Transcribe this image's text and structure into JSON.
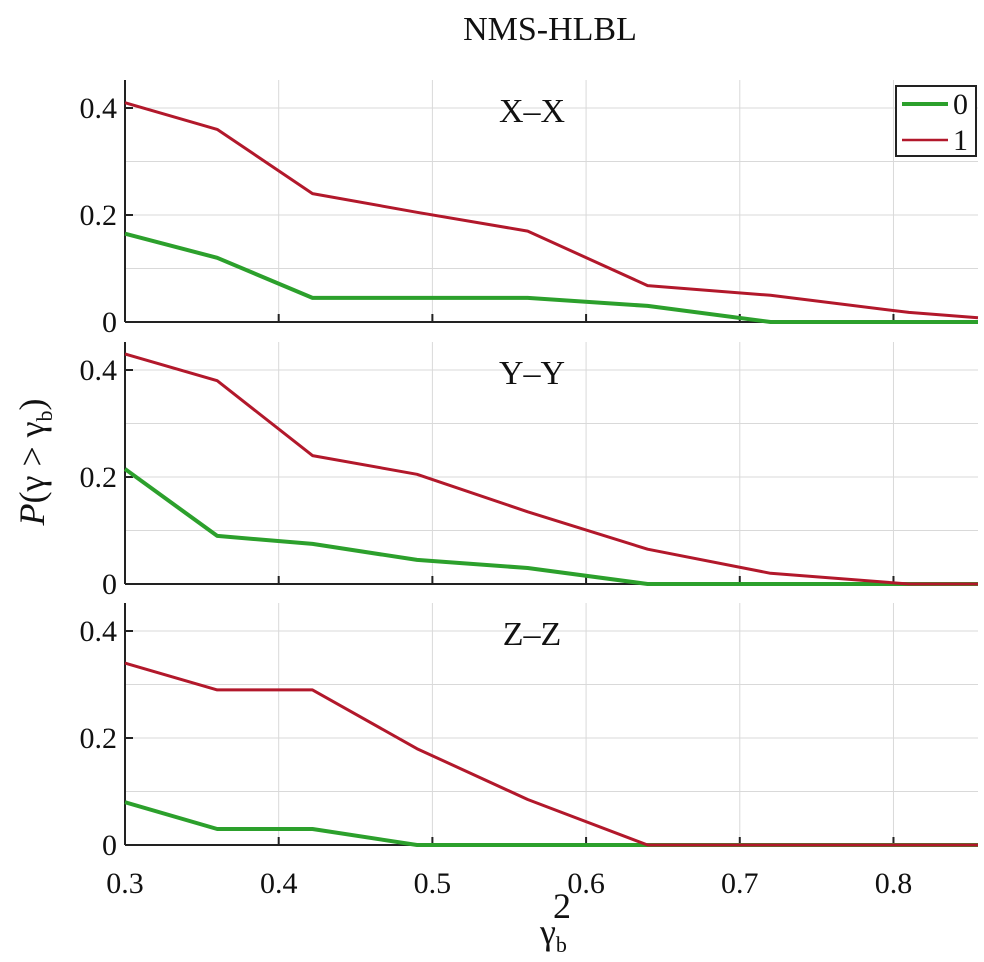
{
  "chart_data": {
    "type": "line",
    "title": "NMS-HLBL",
    "xlabel": "γ",
    "xlabel_sub": "b",
    "xlabel_sup": "2",
    "ylabel_prefix": "P",
    "ylabel_expr": "(γ > γ",
    "ylabel_sub": "b",
    "ylabel_close": ")",
    "xlim": [
      0.3,
      0.855
    ],
    "ylim": [
      0,
      0.45
    ],
    "x_ticks": [
      0.3,
      0.4,
      0.5,
      0.6,
      0.7,
      0.8
    ],
    "x_tick_labels": [
      "0.3",
      "0.4",
      "0.5",
      "0.6",
      "0.7",
      "0.8"
    ],
    "y_ticks": [
      0,
      0.2,
      0.4
    ],
    "y_tick_labels": [
      "0",
      "0.2",
      "0.4"
    ],
    "x_grid": [
      0.3,
      0.4,
      0.5,
      0.6,
      0.7,
      0.8
    ],
    "y_grid": [
      0,
      0.1,
      0.2,
      0.3,
      0.4
    ],
    "legend": {
      "placement": "top-right",
      "entries": [
        {
          "label": "0",
          "color": "#2ca02c"
        },
        {
          "label": "1",
          "color": "#b2182b"
        }
      ]
    },
    "panels": [
      {
        "title": "X–X",
        "series": [
          {
            "name": "0",
            "color": "#2ca02c",
            "x": [
              0.3,
              0.36,
              0.422,
              0.49,
              0.562,
              0.64,
              0.72,
              0.855
            ],
            "y": [
              0.165,
              0.12,
              0.045,
              0.045,
              0.045,
              0.03,
              0.0,
              0.0
            ]
          },
          {
            "name": "1",
            "color": "#b2182b",
            "x": [
              0.3,
              0.36,
              0.422,
              0.49,
              0.562,
              0.64,
              0.72,
              0.81,
              0.855
            ],
            "y": [
              0.41,
              0.36,
              0.24,
              0.205,
              0.17,
              0.068,
              0.05,
              0.018,
              0.008
            ]
          }
        ]
      },
      {
        "title": "Y–Y",
        "series": [
          {
            "name": "0",
            "color": "#2ca02c",
            "x": [
              0.3,
              0.36,
              0.422,
              0.49,
              0.562,
              0.64,
              0.855
            ],
            "y": [
              0.215,
              0.09,
              0.075,
              0.045,
              0.03,
              0.0,
              0.0
            ]
          },
          {
            "name": "1",
            "color": "#b2182b",
            "x": [
              0.3,
              0.36,
              0.422,
              0.49,
              0.562,
              0.64,
              0.72,
              0.81,
              0.855
            ],
            "y": [
              0.43,
              0.38,
              0.24,
              0.205,
              0.135,
              0.065,
              0.02,
              0.0,
              0.0
            ]
          }
        ]
      },
      {
        "title": "Z–Z",
        "series": [
          {
            "name": "0",
            "color": "#2ca02c",
            "x": [
              0.3,
              0.36,
              0.422,
              0.49,
              0.855
            ],
            "y": [
              0.08,
              0.03,
              0.03,
              0.0,
              0.0
            ]
          },
          {
            "name": "1",
            "color": "#b2182b",
            "x": [
              0.3,
              0.36,
              0.422,
              0.49,
              0.562,
              0.64,
              0.855
            ],
            "y": [
              0.34,
              0.29,
              0.29,
              0.18,
              0.085,
              0.0,
              0.0
            ]
          }
        ]
      }
    ]
  }
}
